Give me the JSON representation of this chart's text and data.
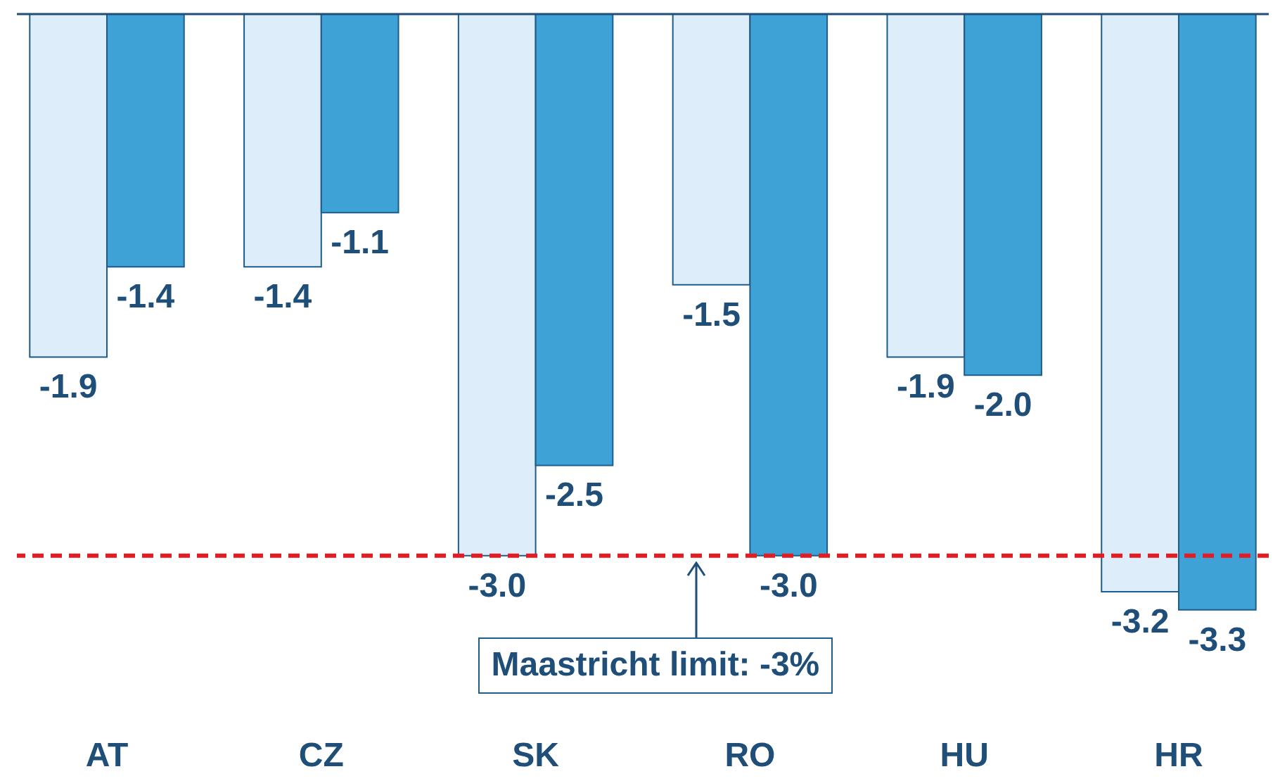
{
  "chart_data": {
    "type": "bar",
    "categories": [
      "AT",
      "CZ",
      "SK",
      "RO",
      "HU",
      "HR"
    ],
    "series": [
      {
        "color": "#ddeefa",
        "values": [
          -1.9,
          -1.4,
          -3.0,
          -1.5,
          -1.9,
          -3.2
        ],
        "value_labels": [
          "-1.9",
          "-1.4",
          "-3.0",
          "-1.5",
          "-1.9",
          "-3.2"
        ]
      },
      {
        "color": "#3fa2d6",
        "values": [
          -1.4,
          -1.1,
          -2.5,
          -3.0,
          -2.0,
          -3.3
        ],
        "value_labels": [
          "-1.4",
          "-1.1",
          "-2.5",
          "-3.0",
          "-2.0",
          "-3.3"
        ]
      }
    ],
    "ref_lines": [
      {
        "axis": "y",
        "value": -3,
        "label": "Maastricht limit: -3%",
        "color": "#e31b23",
        "line_style": "dashed"
      }
    ]
  }
}
